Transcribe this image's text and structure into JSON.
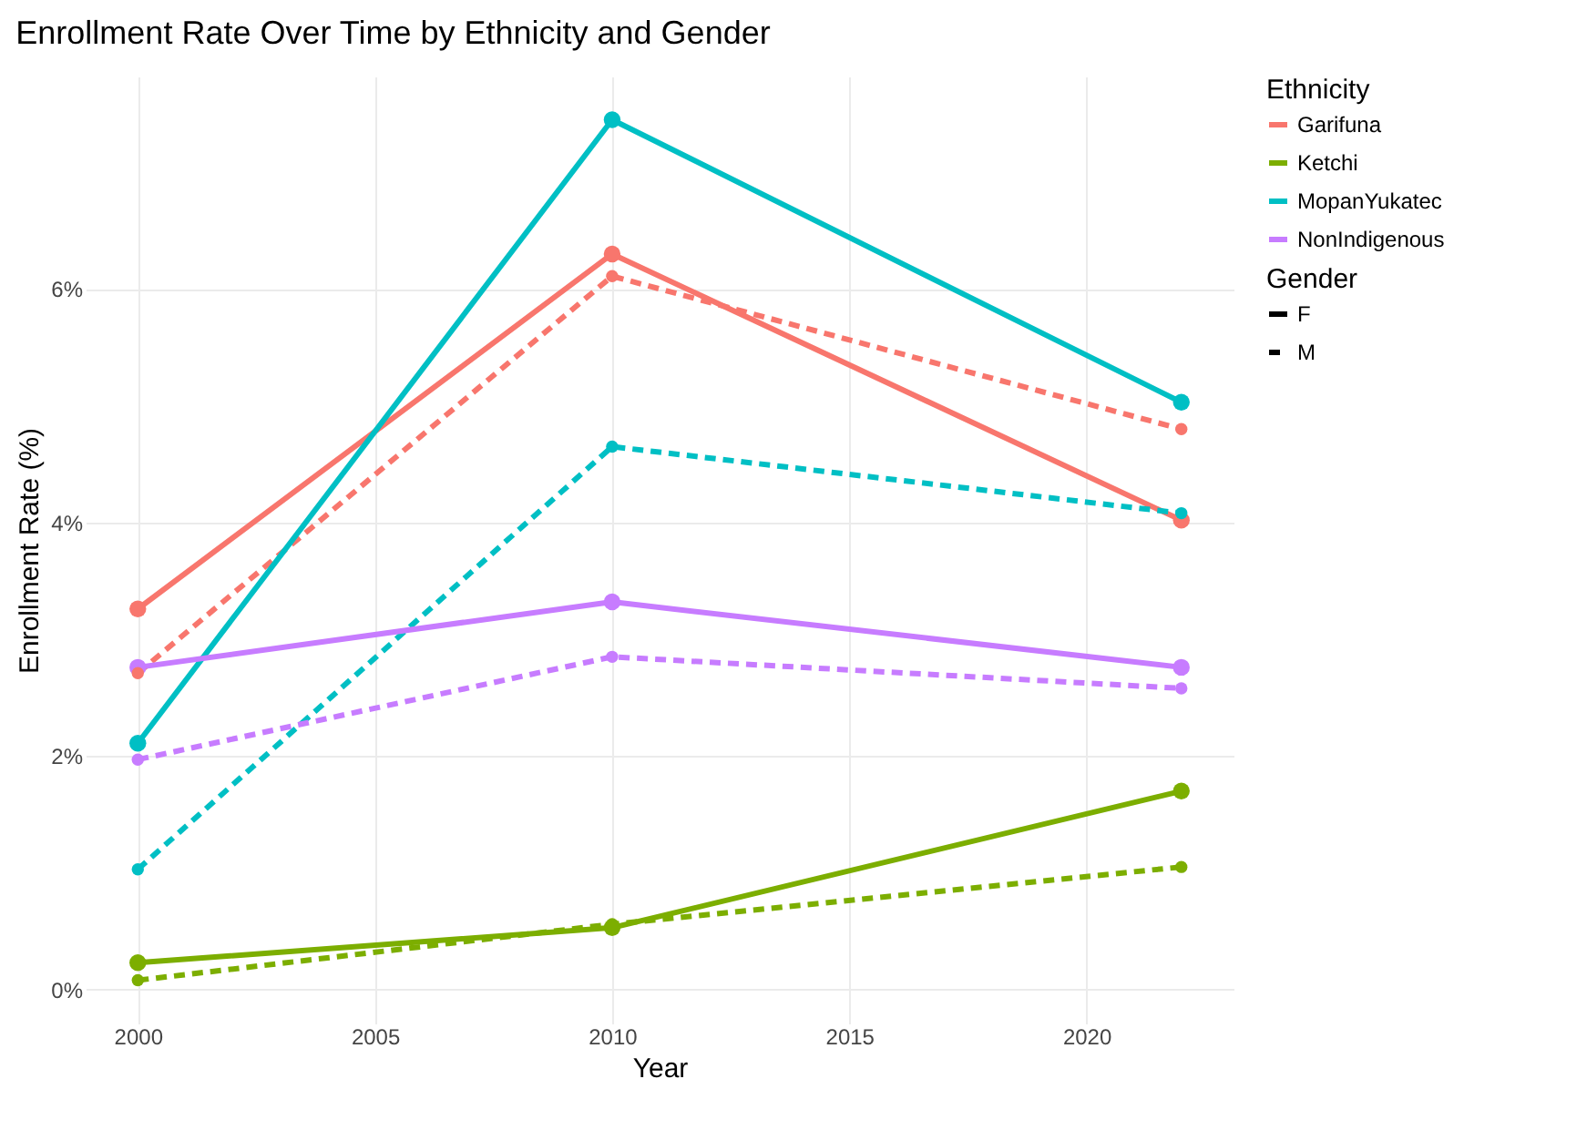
{
  "chart_data": {
    "type": "line",
    "title": "Enrollment Rate Over Time by Ethnicity and Gender",
    "xlabel": "Year",
    "ylabel": "Enrollment Rate (%)",
    "legend_title": [
      "Ethnicity",
      "Gender"
    ],
    "annotations": [
      "F",
      "M"
    ],
    "x": [
      2000,
      2010,
      2022
    ],
    "series": [
      {
        "name": "Garifuna",
        "line_style": "solid",
        "color": "#f8766d",
        "values": [
          3.26,
          6.3,
          4.02
        ]
      },
      {
        "line_style": "dashed",
        "color": "#f8766d",
        "values": [
          2.71,
          6.11,
          4.8
        ]
      },
      {
        "name": "Ketchi",
        "line_style": "solid",
        "color": "#7cae00",
        "values": [
          0.23,
          0.53,
          1.7
        ]
      },
      {
        "line_style": "dashed",
        "color": "#7cae00",
        "values": [
          0.08,
          0.56,
          1.05
        ]
      },
      {
        "name": "MopanYukatec",
        "line_style": "solid",
        "color": "#00bfc4",
        "values": [
          2.11,
          7.45,
          5.03
        ]
      },
      {
        "line_style": "dashed",
        "color": "#00bfc4",
        "values": [
          1.03,
          4.65,
          4.08
        ]
      },
      {
        "name": "NonIndigenous",
        "line_style": "solid",
        "color": "#c77cff",
        "values": [
          2.76,
          3.32,
          2.76
        ]
      },
      {
        "line_style": "dashed",
        "color": "#c77cff",
        "values": [
          1.97,
          2.85,
          2.58
        ]
      }
    ],
    "xlim": [
      1998.9,
      2023.1
    ],
    "ylim": [
      -0.29,
      7.82
    ],
    "xticks": [
      2000,
      2005,
      2010,
      2015,
      2020
    ],
    "yticks": [
      {
        "value": 0,
        "label": "0%"
      },
      {
        "value": 2,
        "label": "2%"
      },
      {
        "value": 4,
        "label": "4%"
      },
      {
        "value": 6,
        "label": "6%"
      }
    ],
    "grid": true,
    "legend": "right",
    "marker": "circle"
  }
}
